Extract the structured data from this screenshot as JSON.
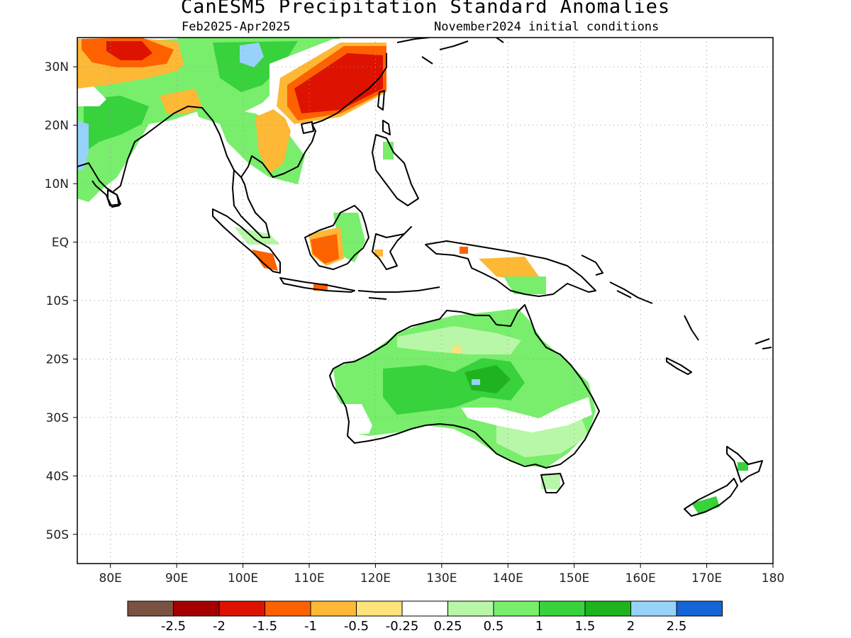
{
  "title": "CanESM5 Precipitation Standard Anomalies",
  "subtitle_left": "Feb2025-Apr2025",
  "subtitle_right": "November2024 initial conditions",
  "map": {
    "lon_range": [
      75,
      180
    ],
    "lat_range": [
      -55,
      35
    ],
    "lon_ticks": [
      {
        "value": 80,
        "label": "80E"
      },
      {
        "value": 90,
        "label": "90E"
      },
      {
        "value": 100,
        "label": "100E"
      },
      {
        "value": 110,
        "label": "110E"
      },
      {
        "value": 120,
        "label": "120E"
      },
      {
        "value": 130,
        "label": "130E"
      },
      {
        "value": 140,
        "label": "140E"
      },
      {
        "value": 150,
        "label": "150E"
      },
      {
        "value": 160,
        "label": "160E"
      },
      {
        "value": 170,
        "label": "170E"
      },
      {
        "value": 180,
        "label": "180"
      }
    ],
    "lat_ticks": [
      {
        "value": 30,
        "label": "30N"
      },
      {
        "value": 20,
        "label": "20N"
      },
      {
        "value": 10,
        "label": "10N"
      },
      {
        "value": 0,
        "label": "EQ"
      },
      {
        "value": -10,
        "label": "10S"
      },
      {
        "value": -20,
        "label": "20S"
      },
      {
        "value": -30,
        "label": "30S"
      },
      {
        "value": -40,
        "label": "40S"
      },
      {
        "value": -50,
        "label": "50S"
      }
    ],
    "grid": "dotted"
  },
  "colorbar": {
    "colors": [
      "#7a5242",
      "#a50000",
      "#dd1200",
      "#fe6100",
      "#fdb836",
      "#fee27a",
      "#ffffff",
      "#b8f7a8",
      "#78ee6c",
      "#37d23c",
      "#1fb41f",
      "#97d2fb",
      "#1565d8"
    ],
    "labels": [
      "-2.5",
      "-2",
      "-1.5",
      "-1",
      "-0.5",
      "-0.25",
      "0.25",
      "0.5",
      "1",
      "1.5",
      "2",
      "2.5"
    ]
  },
  "anomaly_regions": [
    {
      "name": "SE China",
      "category": "-1.5",
      "color": "#dd1200"
    },
    {
      "name": "S China fringe",
      "category": "-1",
      "color": "#fe6100"
    },
    {
      "name": "N India",
      "category": "-1.5",
      "color": "#dd1200"
    },
    {
      "name": "Tibet",
      "category": "1",
      "color": "#78ee6c"
    },
    {
      "name": "Tibet core",
      "category": "2",
      "color": "#97d2fb"
    },
    {
      "name": "W India coast",
      "category": "2",
      "color": "#97d2fb"
    },
    {
      "name": "Indochina",
      "category": "-0.5",
      "color": "#fdb836"
    },
    {
      "name": "Borneo SW",
      "category": "-1",
      "color": "#fe6100"
    },
    {
      "name": "Borneo E",
      "category": "0.5",
      "color": "#78ee6c"
    },
    {
      "name": "New Guinea",
      "category": "-0.5",
      "color": "#fdb836"
    },
    {
      "name": "Australia",
      "category": "0.5",
      "color": "#78ee6c"
    },
    {
      "name": "Central Australia",
      "category": "1",
      "color": "#37d23c"
    },
    {
      "name": "New Zealand",
      "category": "1",
      "color": "#37d23c"
    }
  ]
}
